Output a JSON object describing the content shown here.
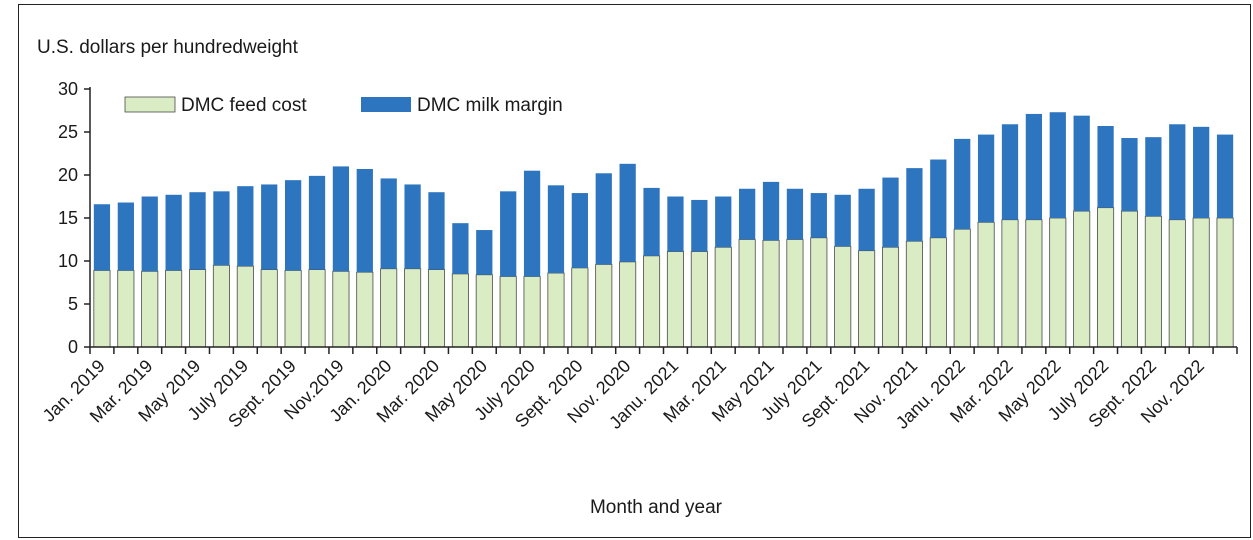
{
  "chart_data": {
    "type": "bar",
    "stacked": true,
    "ylabel": "U.S. dollars per hundredweight",
    "xlabel": "Month and year",
    "ylim": [
      0,
      30
    ],
    "yticks": [
      0,
      5,
      10,
      15,
      20,
      25,
      30
    ],
    "grid": false,
    "legend_position": "top-left",
    "categories": [
      "Jan. 2019",
      "Feb. 2019",
      "Mar. 2019",
      "Apr. 2019",
      "May 2019",
      "June 2019",
      "July 2019",
      "Aug. 2019",
      "Sept. 2019",
      "Oct. 2019",
      "Nov.2019",
      "Dec. 2019",
      "Jan. 2020",
      "Feb. 2020",
      "Mar. 2020",
      "Apr. 2020",
      "May 2020",
      "June 2020",
      "July 2020",
      "Aug. 2020",
      "Sept. 2020",
      "Oct. 2020",
      "Nov. 2020",
      "Dec. 2020",
      "Janu. 2021",
      "Feb. 2021",
      "Mar. 2021",
      "Apr. 2021",
      "May 2021",
      "June 2021",
      "July 2021",
      "Aug. 2021",
      "Sept. 2021",
      "Oct. 2021",
      "Nov. 2021",
      "Dec. 2021",
      "Janu. 2022",
      "Feb. 2022",
      "Mar. 2022",
      "Apr. 2022",
      "May 2022",
      "June 2022",
      "July 2022",
      "Aug. 2022",
      "Sept. 2022",
      "Oct. 2022",
      "Nov. 2022",
      "Dec. 2022"
    ],
    "shown_tick_labels": [
      "Jan. 2019",
      "Mar. 2019",
      "May 2019",
      "July 2019",
      "Sept. 2019",
      "Nov.2019",
      "Jan. 2020",
      "Mar. 2020",
      "May 2020",
      "July 2020",
      "Sept. 2020",
      "Nov. 2020",
      "Janu. 2021",
      "Mar. 2021",
      "May 2021",
      "July 2021",
      "Sept. 2021",
      "Nov. 2021",
      "Janu. 2022",
      "Mar. 2022",
      "May 2022",
      "July 2022",
      "Sept. 2022",
      "Nov. 2022"
    ],
    "series": [
      {
        "name": "DMC feed cost",
        "color": "#d9ecc4",
        "values": [
          8.9,
          8.9,
          8.8,
          8.9,
          9.0,
          9.5,
          9.4,
          9.0,
          8.9,
          9.0,
          8.8,
          8.7,
          9.1,
          9.1,
          9.0,
          8.5,
          8.4,
          8.2,
          8.2,
          8.6,
          9.2,
          9.6,
          9.9,
          10.6,
          11.1,
          11.1,
          11.6,
          12.5,
          12.4,
          12.5,
          12.7,
          11.7,
          11.2,
          11.6,
          12.3,
          12.7,
          13.7,
          14.5,
          14.8,
          14.8,
          15.0,
          15.8,
          16.2,
          15.8,
          15.2,
          14.8,
          15.0,
          15.0
        ]
      },
      {
        "name": "DMC milk margin",
        "color": "#2e75c0",
        "values": [
          7.7,
          7.9,
          8.7,
          8.8,
          9.0,
          8.6,
          9.3,
          9.9,
          10.5,
          10.9,
          12.2,
          12.0,
          10.5,
          9.8,
          9.0,
          5.9,
          5.2,
          9.9,
          12.3,
          10.2,
          8.7,
          10.6,
          11.4,
          7.9,
          6.4,
          6.0,
          5.9,
          5.9,
          6.8,
          5.9,
          5.2,
          6.0,
          7.2,
          8.1,
          8.5,
          9.1,
          10.5,
          10.2,
          11.1,
          12.3,
          12.3,
          11.1,
          9.5,
          8.5,
          9.2,
          11.1,
          10.6,
          9.7
        ]
      }
    ]
  }
}
